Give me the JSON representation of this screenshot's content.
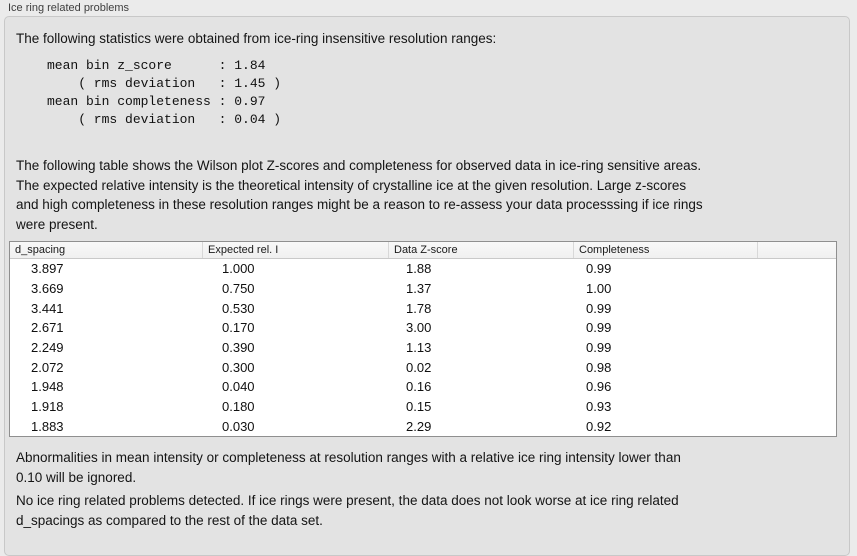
{
  "panel": {
    "title": "Ice ring related problems"
  },
  "intro": "The following statistics were obtained from ice-ring insensitive resolution ranges:",
  "stats_block": "mean bin z_score      : 1.84\n    ( rms deviation   : 1.45 )\nmean bin completeness : 0.97\n    ( rms deviation   : 0.04 )",
  "stats": {
    "mean_bin_z_score": "1.84",
    "z_score_rms_deviation": "1.45",
    "mean_bin_completeness": "0.97",
    "completeness_rms_deviation": "0.04"
  },
  "table_intro": "The following table shows the Wilson plot Z-scores and completeness for observed data in ice-ring sensitive areas.\nThe expected relative intensity is the theoretical intensity of crystalline ice at the given resolution. Large z-scores\nand high completeness in these resolution ranges might be a reason to re-assess your data processsing if ice rings\nwere present.",
  "table": {
    "columns": [
      "d_spacing",
      "Expected rel. I",
      "Data Z-score",
      "Completeness"
    ],
    "rows": [
      [
        "3.897",
        "1.000",
        "1.88",
        "0.99"
      ],
      [
        "3.669",
        "0.750",
        "1.37",
        "1.00"
      ],
      [
        "3.441",
        "0.530",
        "1.78",
        "0.99"
      ],
      [
        "2.671",
        "0.170",
        "3.00",
        "0.99"
      ],
      [
        "2.249",
        "0.390",
        "1.13",
        "0.99"
      ],
      [
        "2.072",
        "0.300",
        "0.02",
        "0.98"
      ],
      [
        "1.948",
        "0.040",
        "0.16",
        "0.96"
      ],
      [
        "1.918",
        "0.180",
        "0.15",
        "0.93"
      ],
      [
        "1.883",
        "0.030",
        "2.29",
        "0.92"
      ]
    ]
  },
  "note_ignore": "Abnormalities in mean intensity or completeness at resolution ranges with a relative ice ring intensity lower than\n0.10 will be ignored.",
  "conclusion": "No ice ring related problems detected. If ice rings were present, the data does not look worse at ice ring related\nd_spacings as compared to the rest of the data set.",
  "colors": {
    "page_background": "#ebebeb",
    "groupbox_background": "#e3e3e3",
    "groupbox_border": "#c8c8c8",
    "table_border": "#8f8f8f",
    "header_background": "#f4f4f4",
    "text": "#141414"
  }
}
